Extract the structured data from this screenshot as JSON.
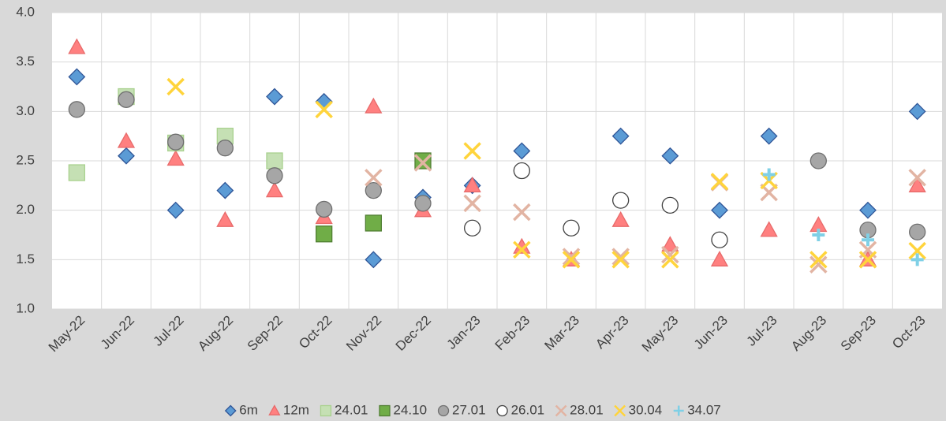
{
  "chart_data": {
    "type": "scatter",
    "categories": [
      "May-22",
      "Jun-22",
      "Jul-22",
      "Aug-22",
      "Sep-22",
      "Oct-22",
      "Nov-22",
      "Dec-22",
      "Jan-23",
      "Feb-23",
      "Mar-23",
      "Apr-23",
      "May-23",
      "Jun-23",
      "Jul-23",
      "Aug-23",
      "Sep-23",
      "Oct-23"
    ],
    "ylim": [
      1.0,
      4.0
    ],
    "yticks": [
      {
        "value": 1.0,
        "label": "1.0"
      },
      {
        "value": 1.5,
        "label": "1.5"
      },
      {
        "value": 2.0,
        "label": "2.0"
      },
      {
        "value": 2.5,
        "label": "2.5"
      },
      {
        "value": 3.0,
        "label": "3.0"
      },
      {
        "value": 3.5,
        "label": "3.5"
      },
      {
        "value": 4.0,
        "label": "4.0"
      }
    ],
    "grid": true,
    "legend": "bottom",
    "series": [
      {
        "name": "6m",
        "marker": "diamond",
        "color": "#5b9bd5",
        "edge": "#2f5597",
        "values": [
          3.35,
          2.55,
          2.0,
          2.2,
          3.15,
          3.1,
          1.5,
          2.13,
          2.25,
          2.6,
          null,
          2.75,
          2.55,
          2.0,
          2.75,
          null,
          2.0,
          3.0
        ]
      },
      {
        "name": "12m",
        "marker": "triangle",
        "color": "#ff8080",
        "edge": "#e86a6a",
        "values": [
          3.65,
          2.7,
          2.52,
          1.9,
          2.2,
          1.93,
          3.05,
          2.0,
          2.25,
          1.63,
          1.5,
          1.9,
          1.65,
          1.5,
          1.8,
          1.85,
          1.5,
          2.25
        ]
      },
      {
        "name": "24.01",
        "marker": "square",
        "color": "#c5e0b4",
        "edge": "#a9d18e",
        "values": [
          2.38,
          3.15,
          2.68,
          2.75,
          2.5,
          null,
          null,
          null,
          null,
          null,
          null,
          null,
          null,
          null,
          null,
          null,
          null,
          null
        ]
      },
      {
        "name": "24.10",
        "marker": "square",
        "color": "#70ad47",
        "edge": "#507e32",
        "values": [
          null,
          null,
          null,
          null,
          null,
          1.76,
          1.87,
          2.5,
          null,
          null,
          null,
          null,
          null,
          null,
          null,
          null,
          null,
          null
        ]
      },
      {
        "name": "27.01",
        "marker": "circle",
        "color": "#a6a6a6",
        "edge": "#6f6f6f",
        "values": [
          3.02,
          3.12,
          2.69,
          2.63,
          2.35,
          2.01,
          2.2,
          2.07,
          null,
          null,
          null,
          null,
          null,
          null,
          null,
          2.5,
          1.8,
          1.78
        ]
      },
      {
        "name": "26.01",
        "marker": "circle",
        "color": "#ffffff",
        "edge": "#404040",
        "values": [
          null,
          null,
          null,
          null,
          null,
          null,
          null,
          null,
          1.82,
          2.4,
          1.82,
          2.1,
          2.05,
          1.7,
          null,
          null,
          null,
          null
        ]
      },
      {
        "name": "28.01",
        "marker": "x",
        "color": "#e2b4a3",
        "edge": "#d6a08c",
        "values": [
          null,
          null,
          null,
          null,
          null,
          null,
          2.33,
          2.48,
          2.07,
          1.98,
          1.53,
          1.53,
          1.55,
          2.28,
          2.18,
          1.45,
          1.6,
          2.33
        ]
      },
      {
        "name": "30.04",
        "marker": "x",
        "color": "#ffd43b",
        "edge": "#ffc000",
        "values": [
          null,
          null,
          3.25,
          null,
          null,
          3.02,
          null,
          null,
          2.6,
          1.6,
          1.5,
          1.5,
          1.5,
          2.29,
          2.3,
          1.5,
          1.5,
          1.59
        ]
      },
      {
        "name": "34.07",
        "marker": "plus",
        "color": "#7fd0e6",
        "edge": "#5fbcd6",
        "values": [
          null,
          null,
          null,
          null,
          null,
          null,
          null,
          null,
          null,
          null,
          null,
          null,
          null,
          null,
          2.36,
          1.75,
          1.7,
          1.5
        ]
      }
    ]
  }
}
